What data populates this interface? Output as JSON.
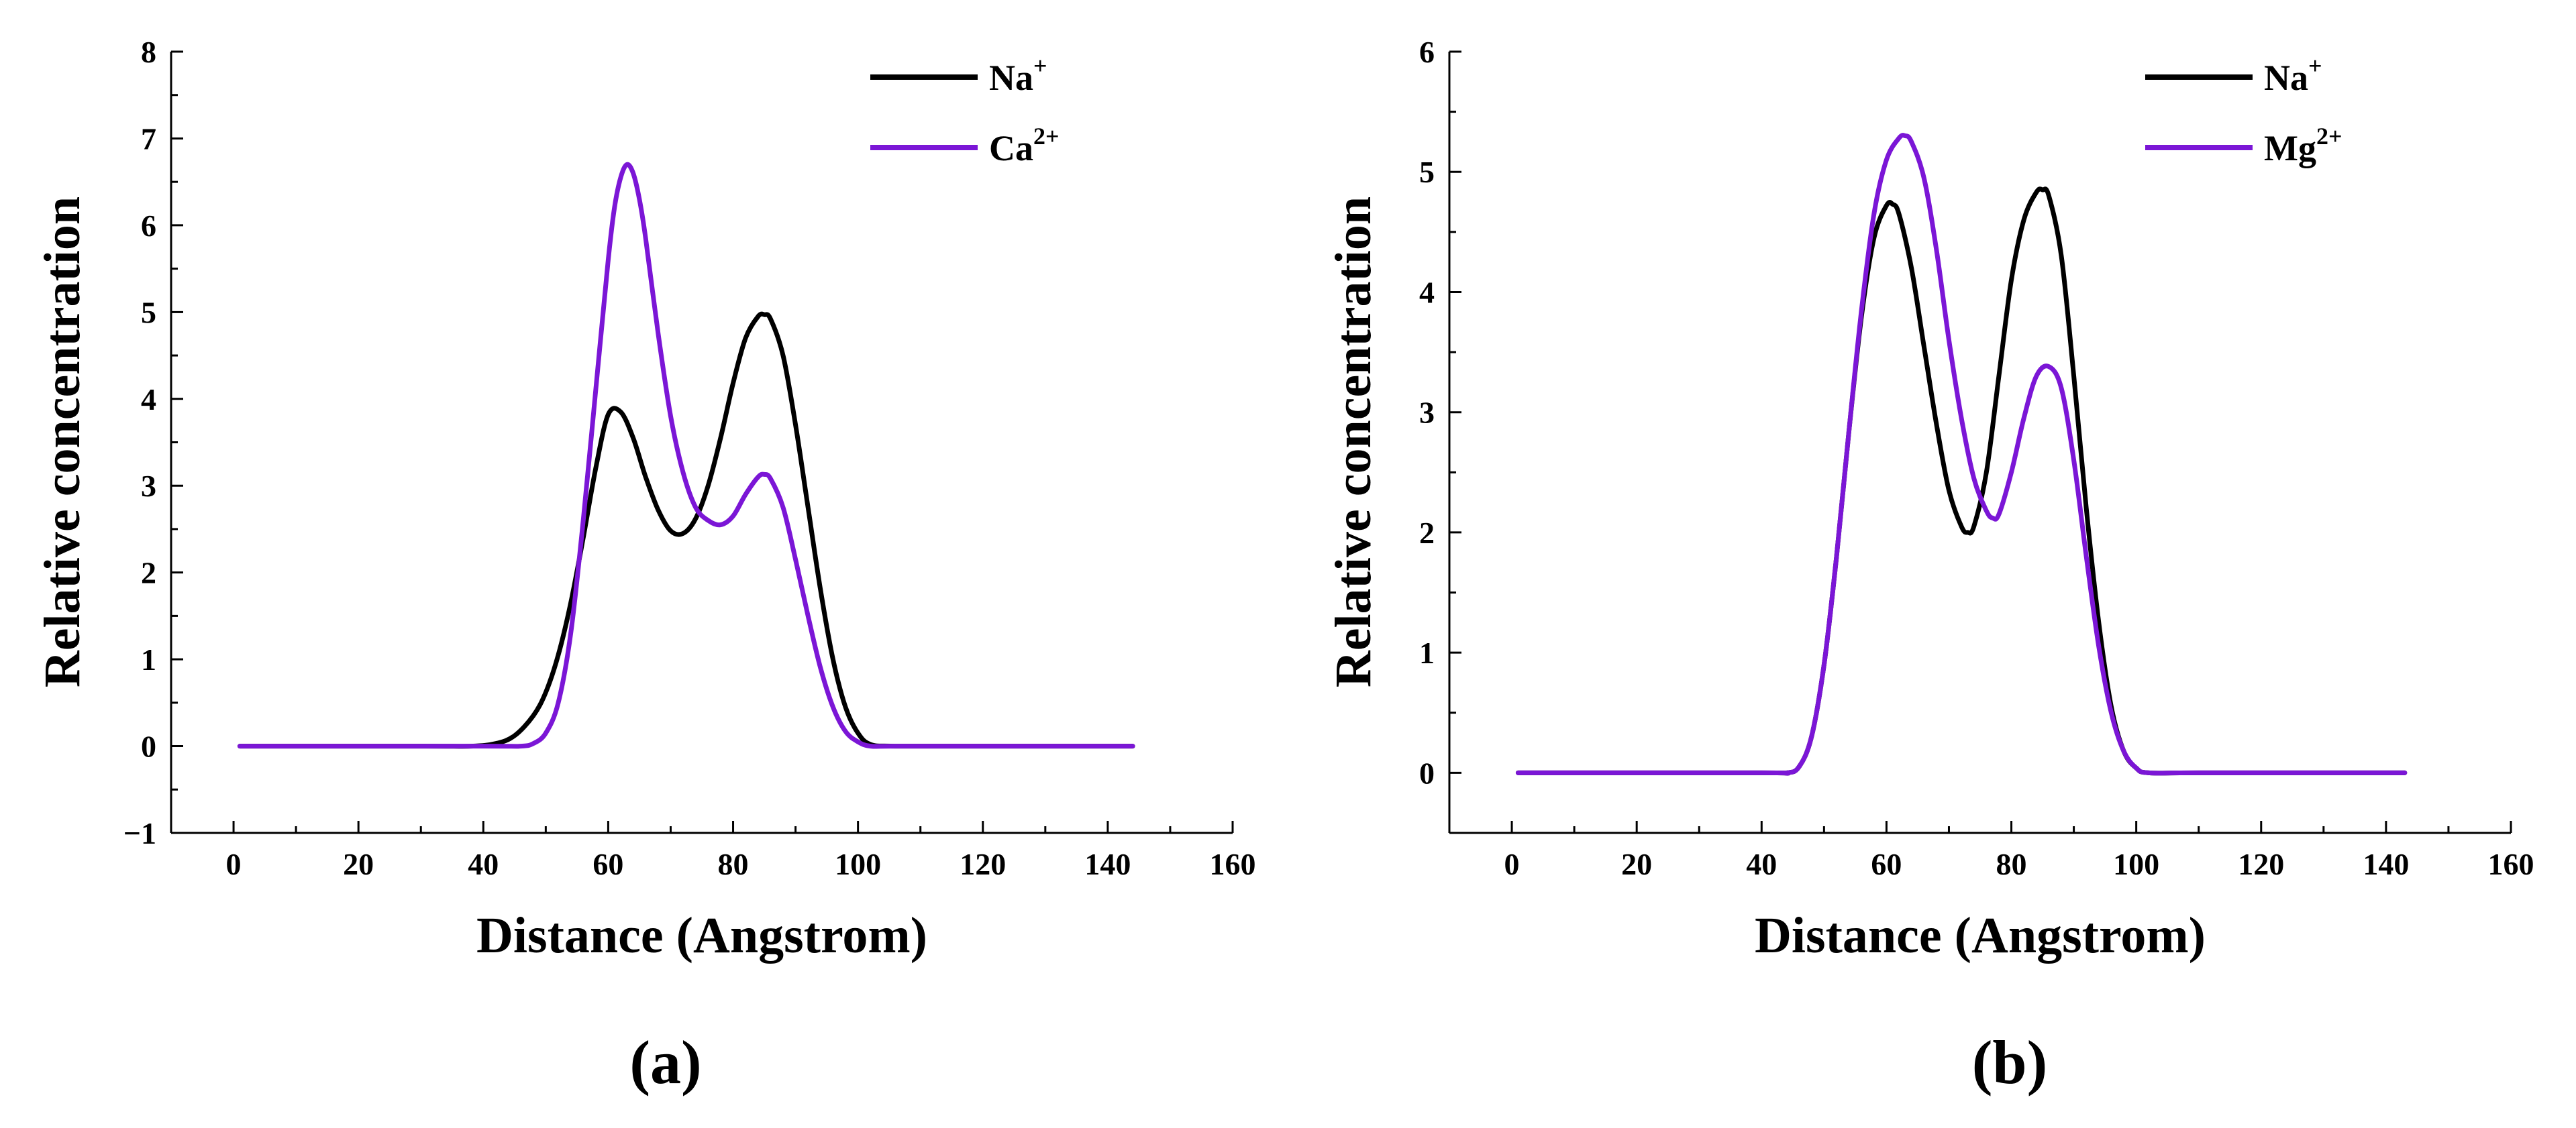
{
  "chart_data": [
    {
      "type": "line",
      "panel": "(a)",
      "xlabel": "Distance (Angstrom)",
      "ylabel": "Relative concentration",
      "xlim": [
        -10,
        160
      ],
      "ylim": [
        -1,
        8
      ],
      "xticks": [
        0,
        20,
        40,
        60,
        80,
        100,
        120,
        140,
        160
      ],
      "yticks": [
        -1,
        0,
        1,
        2,
        3,
        4,
        5,
        6,
        7,
        8
      ],
      "xtick_labels": [
        "0",
        "20",
        "40",
        "60",
        "80",
        "100",
        "120",
        "140",
        "160"
      ],
      "ytick_labels": [
        "−1",
        "0",
        "1",
        "2",
        "3",
        "4",
        "5",
        "6",
        "7",
        "8"
      ],
      "legend_position": "top-right",
      "series": [
        {
          "name": "Na",
          "sup": "+",
          "color": "#000000",
          "x": [
            1,
            30,
            38,
            42,
            45,
            48,
            50,
            52,
            54,
            56,
            58,
            60,
            62,
            64,
            66,
            68,
            70,
            72,
            74,
            76,
            78,
            80,
            82,
            84,
            85,
            86,
            88,
            90,
            92,
            94,
            96,
            98,
            100,
            102,
            106,
            120,
            144
          ],
          "y": [
            0,
            0,
            0,
            0.03,
            0.12,
            0.35,
            0.62,
            1.05,
            1.65,
            2.4,
            3.2,
            3.82,
            3.85,
            3.55,
            3.1,
            2.72,
            2.48,
            2.45,
            2.62,
            3.0,
            3.55,
            4.18,
            4.7,
            4.95,
            4.97,
            4.92,
            4.5,
            3.7,
            2.75,
            1.8,
            1.0,
            0.45,
            0.15,
            0.02,
            0,
            0,
            0
          ]
        },
        {
          "name": "Ca",
          "sup": "2+",
          "color": "#7b16d6",
          "x": [
            1,
            40,
            46,
            48,
            50,
            52,
            54,
            56,
            58,
            60,
            61,
            62,
            63,
            64,
            65,
            66,
            68,
            70,
            72,
            74,
            76,
            78,
            80,
            82,
            84,
            85,
            86,
            88,
            90,
            92,
            94,
            96,
            98,
            100,
            102,
            106,
            120,
            144
          ],
          "y": [
            0,
            0,
            0,
            0.03,
            0.15,
            0.5,
            1.3,
            2.6,
            4.1,
            5.6,
            6.2,
            6.55,
            6.7,
            6.6,
            6.3,
            5.85,
            4.75,
            3.8,
            3.15,
            2.75,
            2.6,
            2.55,
            2.65,
            2.9,
            3.1,
            3.13,
            3.08,
            2.75,
            2.15,
            1.5,
            0.9,
            0.45,
            0.17,
            0.05,
            0,
            0,
            0,
            0
          ]
        }
      ]
    },
    {
      "type": "line",
      "panel": "(b)",
      "xlabel": "Distance (Angstrom)",
      "ylabel": "Relative concentration",
      "xlim": [
        -10,
        160
      ],
      "ylim": [
        -0.5,
        6
      ],
      "xticks": [
        0,
        20,
        40,
        60,
        80,
        100,
        120,
        140,
        160
      ],
      "yticks": [
        0,
        1,
        2,
        3,
        4,
        5,
        6
      ],
      "xtick_labels": [
        "0",
        "20",
        "40",
        "60",
        "80",
        "100",
        "120",
        "140",
        "160"
      ],
      "ytick_labels": [
        "0",
        "1",
        "2",
        "3",
        "4",
        "5",
        "6"
      ],
      "legend_position": "top-right",
      "series": [
        {
          "name": "Na",
          "sup": "+",
          "color": "#000000",
          "x": [
            1,
            40,
            44,
            46,
            48,
            50,
            52,
            54,
            56,
            58,
            60,
            61,
            62,
            64,
            66,
            68,
            70,
            72,
            73,
            74,
            76,
            78,
            80,
            82,
            84,
            85,
            86,
            88,
            90,
            92,
            94,
            96,
            98,
            100,
            102,
            110,
            143
          ],
          "y": [
            0,
            0,
            0,
            0.05,
            0.3,
            0.9,
            1.8,
            2.85,
            3.8,
            4.45,
            4.72,
            4.73,
            4.65,
            4.2,
            3.55,
            2.9,
            2.35,
            2.05,
            2.0,
            2.05,
            2.5,
            3.3,
            4.1,
            4.6,
            4.83,
            4.85,
            4.8,
            4.3,
            3.3,
            2.2,
            1.25,
            0.55,
            0.18,
            0.04,
            0,
            0,
            0
          ]
        },
        {
          "name": "Mg",
          "sup": "2+",
          "color": "#7b16d6",
          "x": [
            1,
            40,
            44,
            46,
            48,
            50,
            52,
            54,
            56,
            58,
            60,
            62,
            63,
            64,
            66,
            68,
            70,
            72,
            74,
            76,
            77,
            78,
            80,
            82,
            84,
            86,
            88,
            90,
            92,
            94,
            96,
            98,
            100,
            102,
            110,
            143
          ],
          "y": [
            0,
            0,
            0,
            0.05,
            0.3,
            0.9,
            1.8,
            2.85,
            3.85,
            4.65,
            5.1,
            5.28,
            5.3,
            5.25,
            4.95,
            4.35,
            3.6,
            2.95,
            2.45,
            2.18,
            2.12,
            2.15,
            2.5,
            2.95,
            3.3,
            3.38,
            3.2,
            2.6,
            1.8,
            1.05,
            0.5,
            0.18,
            0.04,
            0,
            0,
            0
          ]
        }
      ]
    }
  ]
}
